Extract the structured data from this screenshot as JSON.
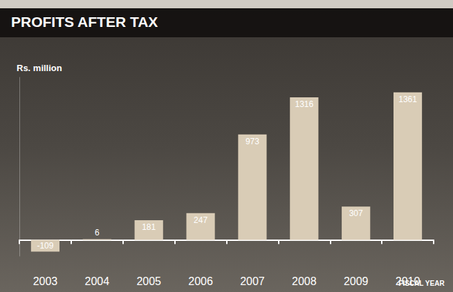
{
  "chart_data": {
    "type": "bar",
    "title": "PROFITS AFTER TAX",
    "ylabel": "Rs. million",
    "xlabel": "FISCAL YEAR",
    "categories": [
      "2003",
      "2004",
      "2005",
      "2006",
      "2007",
      "2008",
      "2009",
      "2010"
    ],
    "values": [
      -109,
      6,
      181,
      247,
      973,
      1316,
      307,
      1361
    ],
    "color": "#d9ccb6",
    "ylim": [
      -150,
      1500
    ],
    "grid": false,
    "data_labels": true,
    "tick_labels": "x"
  }
}
